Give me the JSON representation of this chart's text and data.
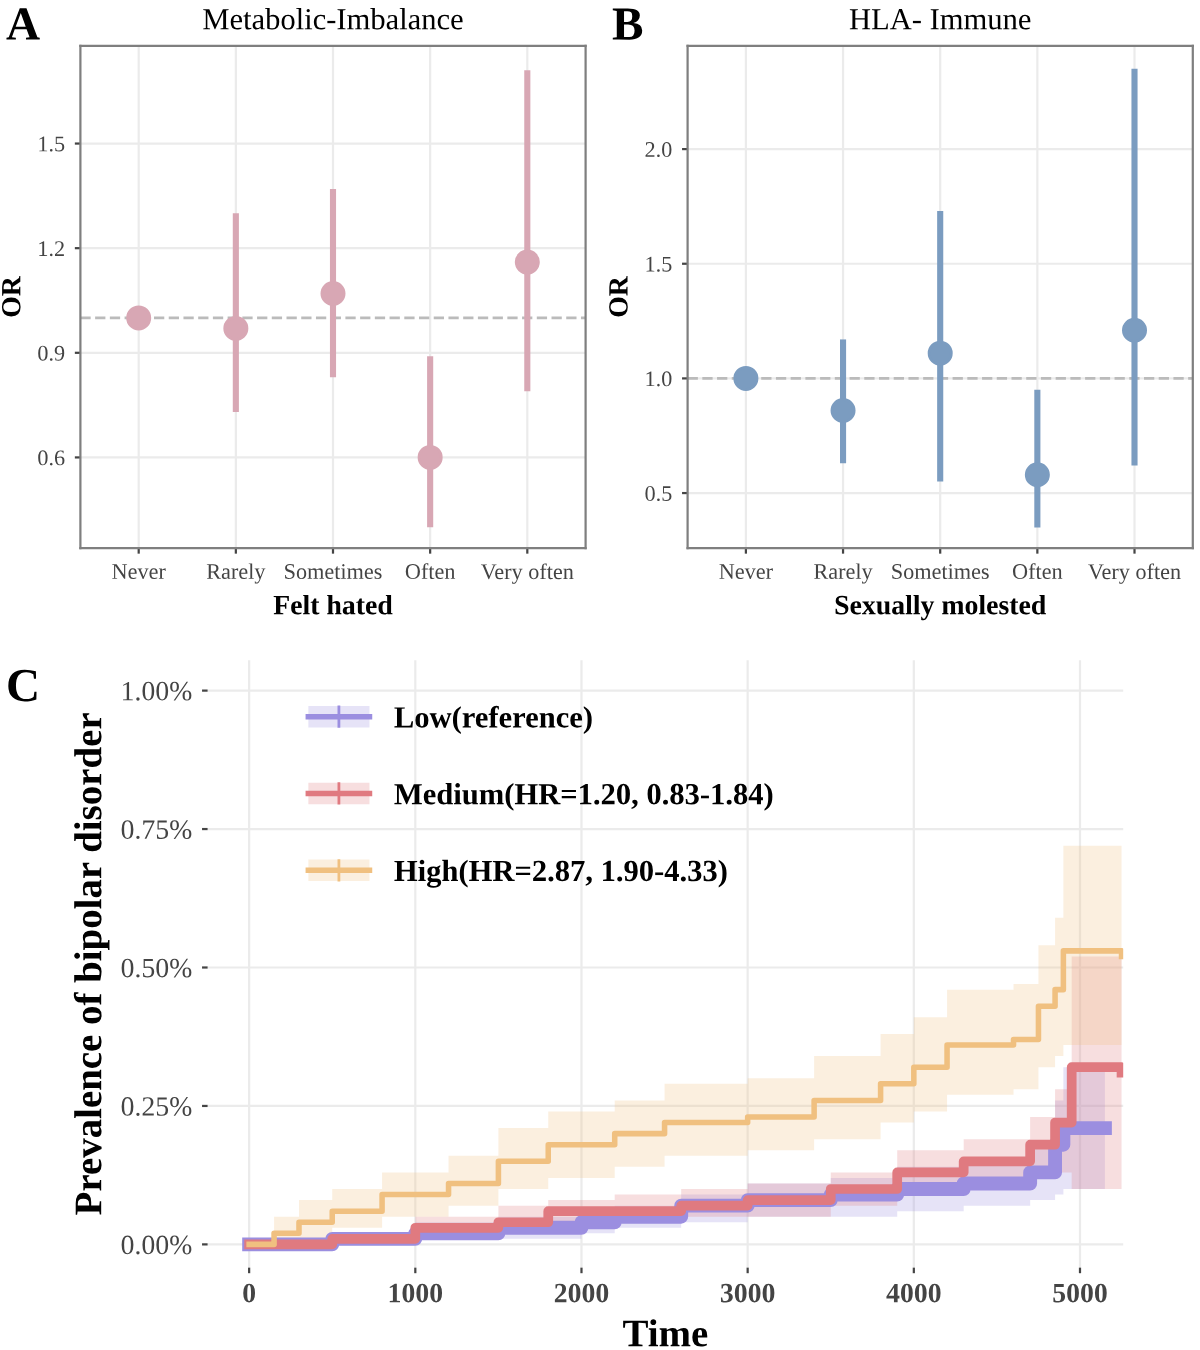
{
  "chart_data": [
    {
      "type": "scatter",
      "title": "Metabolic-Imbalance",
      "xlabel": "Felt hated",
      "ylabel": "OR",
      "annotations": [
        "A"
      ],
      "categories": [
        "Never",
        "Rarely",
        "Sometimes",
        "Often",
        "Very often"
      ],
      "series": [
        {
          "color": "#d8a7b4",
          "values": [
            1.0,
            0.97,
            1.07,
            0.6,
            1.16
          ],
          "errors": [
            null,
            [
              0.73,
              1.3
            ],
            [
              0.83,
              1.37
            ],
            [
              0.4,
              0.89
            ],
            [
              0.79,
              1.71
            ]
          ]
        }
      ],
      "ylim": [
        0.34,
        1.78
      ],
      "yticks": [
        0.6,
        0.9,
        1.2,
        1.5
      ],
      "ref_lines": [
        {
          "axis": "y",
          "value": 1.0,
          "color": "#bbbbbb",
          "line_style": "dashed"
        }
      ],
      "grid": true,
      "marker": "circle"
    },
    {
      "type": "scatter",
      "title": "HLA- Immune",
      "xlabel": "Sexually molested",
      "ylabel": "OR",
      "annotations": [
        "B"
      ],
      "categories": [
        "Never",
        "Rarely",
        "Sometimes",
        "Often",
        "Very often"
      ],
      "series": [
        {
          "color": "#7b9cc0",
          "values": [
            1.0,
            0.86,
            1.11,
            0.58,
            1.21
          ],
          "errors": [
            null,
            [
              0.63,
              1.17
            ],
            [
              0.55,
              1.73
            ],
            [
              0.35,
              0.95
            ],
            [
              0.62,
              2.35
            ]
          ]
        }
      ],
      "ylim": [
        0.26,
        2.45
      ],
      "yticks": [
        {
          "value": 0.5,
          "label": "0.5"
        },
        {
          "value": 1.0,
          "label": "1.0"
        },
        {
          "value": 1.5,
          "label": "1.5"
        },
        {
          "value": 2.0,
          "label": "2.0"
        }
      ],
      "ref_lines": [
        {
          "axis": "y",
          "value": 1.0,
          "color": "#bbbbbb",
          "line_style": "dashed"
        }
      ],
      "grid": true,
      "marker": "circle"
    },
    {
      "type": "step",
      "xlabel": "Time",
      "ylabel": "Prevalence of bipolar disorder",
      "annotations": [
        "C"
      ],
      "series": [
        {
          "name": "Low(reference)",
          "color": "#9b8ee0",
          "x": [
            0,
            500,
            1000,
            1500,
            2000,
            2200,
            2600,
            3000,
            3500,
            3900,
            4300,
            4700,
            4850,
            4900,
            5150
          ],
          "values": [
            0,
            0.01,
            0.02,
            0.03,
            0.04,
            0.05,
            0.07,
            0.08,
            0.09,
            0.1,
            0.11,
            0.13,
            0.18,
            0.21,
            0.21
          ],
          "lower": [
            0,
            0,
            0.01,
            0.01,
            0.02,
            0.03,
            0.04,
            0.05,
            0.05,
            0.06,
            0.07,
            0.08,
            0.09,
            0.1,
            0.1
          ],
          "upper": [
            0,
            0.02,
            0.04,
            0.05,
            0.06,
            0.07,
            0.09,
            0.11,
            0.12,
            0.14,
            0.15,
            0.18,
            0.26,
            0.32,
            0.32
          ]
        },
        {
          "name": "Medium(HR=1.20, 0.83-1.84)",
          "color": "#e07a80",
          "x": [
            0,
            500,
            1000,
            1500,
            1800,
            2200,
            2600,
            3000,
            3500,
            3900,
            4300,
            4700,
            4850,
            4950,
            5250
          ],
          "values": [
            0,
            0.01,
            0.03,
            0.04,
            0.06,
            0.06,
            0.07,
            0.08,
            0.1,
            0.13,
            0.15,
            0.18,
            0.22,
            0.32,
            0.31
          ],
          "lower": [
            0,
            0,
            0.01,
            0.02,
            0.03,
            0.04,
            0.05,
            0.05,
            0.07,
            0.09,
            0.1,
            0.12,
            0.13,
            0.1,
            0.1
          ],
          "upper": [
            0,
            0.02,
            0.05,
            0.07,
            0.08,
            0.09,
            0.1,
            0.11,
            0.13,
            0.17,
            0.19,
            0.23,
            0.28,
            0.52,
            0.52
          ]
        },
        {
          "name": "High(HR=2.87, 1.90-4.33)",
          "color": "#f0c080",
          "x": [
            0,
            150,
            300,
            500,
            800,
            1200,
            1500,
            1800,
            2200,
            2500,
            3000,
            3400,
            3800,
            4000,
            4200,
            4600,
            4750,
            4850,
            4900,
            5250
          ],
          "values": [
            0,
            0.02,
            0.04,
            0.06,
            0.09,
            0.11,
            0.15,
            0.18,
            0.2,
            0.22,
            0.23,
            0.26,
            0.29,
            0.32,
            0.36,
            0.37,
            0.43,
            0.46,
            0.53,
            0.52
          ],
          "lower": [
            0,
            0,
            0.01,
            0.03,
            0.05,
            0.07,
            0.1,
            0.12,
            0.14,
            0.16,
            0.17,
            0.19,
            0.22,
            0.24,
            0.27,
            0.28,
            0.32,
            0.34,
            0.36,
            0.36
          ],
          "upper": [
            0,
            0.05,
            0.08,
            0.1,
            0.13,
            0.16,
            0.21,
            0.24,
            0.26,
            0.29,
            0.3,
            0.34,
            0.38,
            0.41,
            0.46,
            0.47,
            0.54,
            0.59,
            0.72,
            0.72
          ]
        }
      ],
      "xlim": [
        -250,
        5260
      ],
      "xticks": [
        0,
        1000,
        2000,
        3000,
        4000,
        5000
      ],
      "ylim": [
        -0.042,
        1.055
      ],
      "yticks": [
        {
          "value": 0,
          "label": "0.00%"
        },
        {
          "value": 0.25,
          "label": "0.25%"
        },
        {
          "value": 0.5,
          "label": "0.50%"
        },
        {
          "value": 0.75,
          "label": "0.75%"
        },
        {
          "value": 1.0,
          "label": "1.00%"
        }
      ],
      "grid": true,
      "legend": "top left"
    }
  ]
}
